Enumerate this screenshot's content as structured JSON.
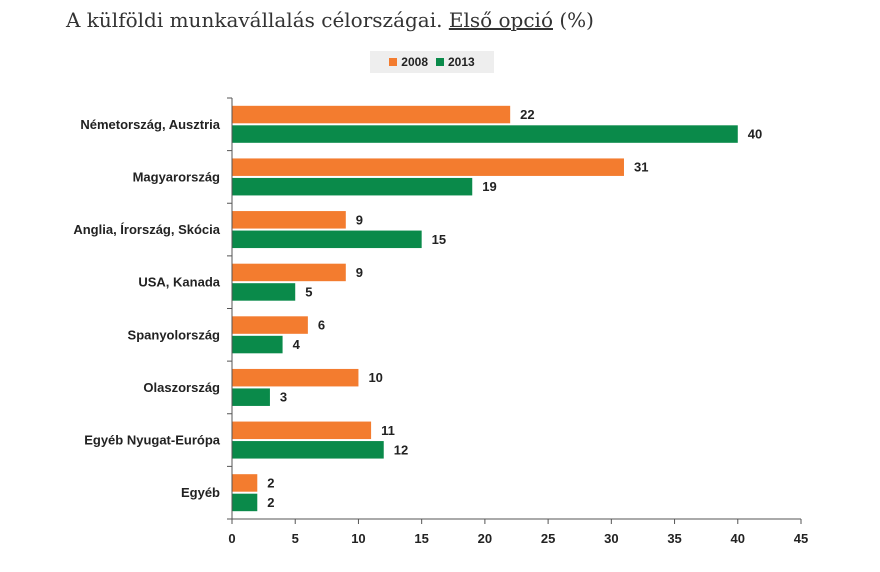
{
  "title": {
    "prefix": "A külföldi munkavállalás célországai.",
    "underlined": "Első opció",
    "suffix": "(%)"
  },
  "colors": {
    "2008": "#f37c2f",
    "2013": "#0a8a4a"
  },
  "chart_data": {
    "type": "bar",
    "orientation": "horizontal",
    "categories": [
      "Németország, Ausztria",
      "Magyarország",
      "Anglia, Írország, Skócia",
      "USA, Kanada",
      "Spanyolország",
      "Olaszország",
      "Egyéb Nyugat-Európa",
      "Egyéb"
    ],
    "series": [
      {
        "name": "2008",
        "values": [
          22,
          31,
          9,
          9,
          6,
          10,
          11,
          2
        ]
      },
      {
        "name": "2013",
        "values": [
          40,
          19,
          15,
          5,
          4,
          3,
          12,
          2
        ]
      }
    ],
    "xlim": [
      0,
      45
    ],
    "xticks": [
      0,
      5,
      10,
      15,
      20,
      25,
      30,
      35,
      40,
      45
    ],
    "grid": false,
    "legend_position": "top-center"
  }
}
